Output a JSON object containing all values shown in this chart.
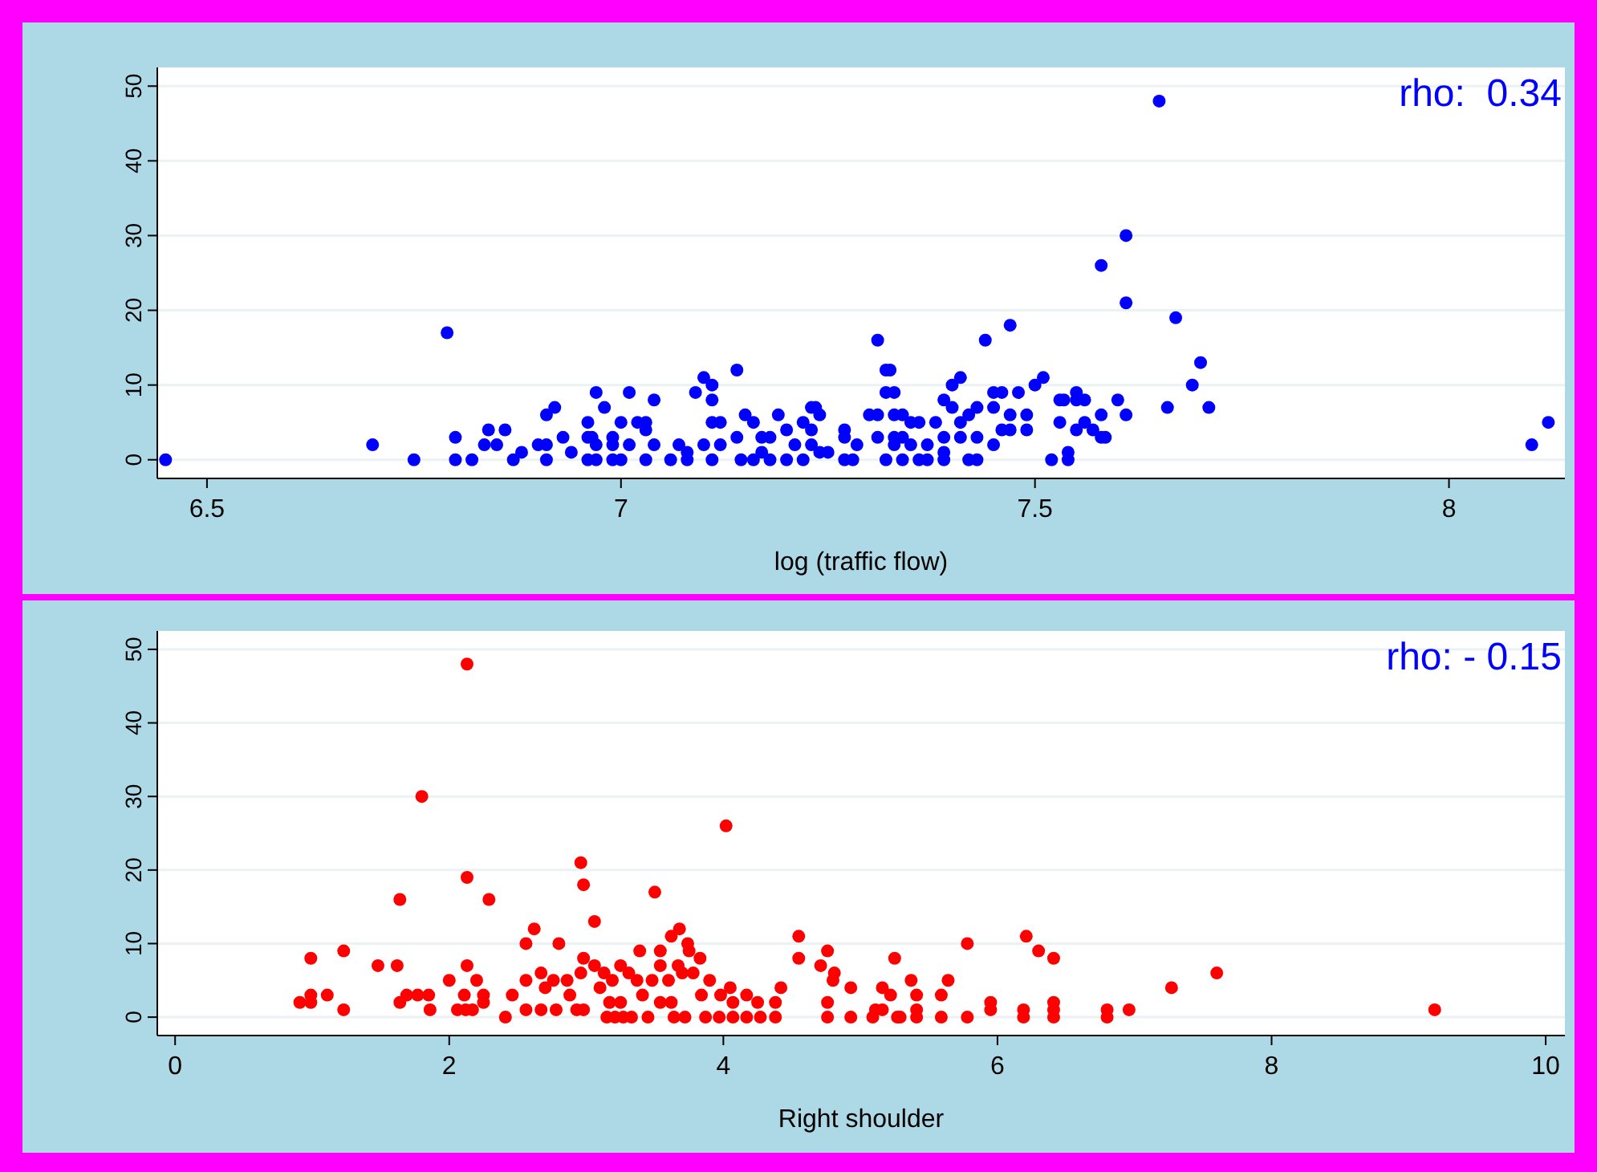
{
  "chart_data": [
    {
      "type": "scatter",
      "xlabel": "log (traffic flow)",
      "annotations": [
        "rho:  0.34"
      ],
      "xlim": [
        6.44,
        8.14
      ],
      "ylim": [
        -2.5,
        52.5
      ],
      "xticks": [
        6.5,
        7,
        7.5,
        8
      ],
      "yticks": [
        0,
        10,
        20,
        30,
        40,
        50
      ],
      "grid": "y",
      "marker": "circle",
      "series": [
        {
          "color": "#0000ff",
          "x": [
            6.45,
            6.7,
            6.75,
            6.79,
            6.8,
            6.8,
            6.82,
            6.835,
            6.85,
            6.84,
            6.86,
            6.87,
            6.88,
            6.9,
            6.91,
            6.91,
            6.91,
            6.92,
            6.93,
            6.94,
            6.96,
            6.96,
            6.965,
            6.97,
            6.96,
            6.97,
            6.97,
            6.99,
            6.98,
            6.99,
            7.0,
            6.99,
            7.0,
            7.01,
            7.01,
            7.02,
            7.03,
            7.03,
            7.04,
            7.04,
            7.03,
            7.06,
            7.08,
            7.07,
            7.08,
            7.09,
            7.1,
            7.11,
            7.11,
            7.11,
            7.12,
            7.1,
            7.12,
            7.11,
            7.14,
            7.15,
            7.14,
            7.145,
            7.16,
            7.17,
            7.18,
            7.17,
            7.16,
            7.18,
            7.19,
            7.2,
            7.22,
            7.23,
            7.235,
            7.24,
            7.23,
            7.21,
            7.23,
            7.24,
            7.2,
            7.22,
            7.25,
            7.27,
            7.27,
            7.27,
            7.28,
            7.285,
            7.31,
            7.32,
            7.325,
            7.32,
            7.33,
            7.3,
            7.31,
            7.33,
            7.34,
            7.31,
            7.33,
            7.34,
            7.35,
            7.36,
            7.38,
            7.33,
            7.35,
            7.37,
            7.32,
            7.34,
            7.36,
            7.37,
            7.39,
            7.4,
            7.41,
            7.4,
            7.41,
            7.42,
            7.39,
            7.41,
            7.39,
            7.39,
            7.42,
            7.43,
            7.43,
            7.43,
            7.44,
            7.45,
            7.45,
            7.46,
            7.45,
            7.46,
            7.47,
            7.47,
            7.47,
            7.48,
            7.49,
            7.49,
            7.5,
            7.51,
            7.52,
            7.53,
            7.535,
            7.53,
            7.54,
            7.54,
            7.55,
            7.55,
            7.55,
            7.56,
            7.56,
            7.57,
            7.58,
            7.585,
            7.58,
            7.58,
            7.6,
            7.61,
            7.61,
            7.61,
            7.65,
            7.66,
            7.67,
            7.69,
            7.7,
            7.71,
            8.1,
            8.12
          ],
          "values": [
            0,
            2,
            0,
            17,
            3,
            0,
            0,
            2,
            2,
            4,
            4,
            0,
            1,
            2,
            2,
            0,
            6,
            7,
            3,
            1,
            5,
            3,
            3,
            9,
            0,
            0,
            2,
            2,
            7,
            3,
            5,
            0,
            0,
            2,
            9,
            5,
            5,
            4,
            8,
            2,
            0,
            0,
            0,
            2,
            1,
            9,
            11,
            10,
            8,
            5,
            5,
            2,
            2,
            0,
            12,
            6,
            3,
            0,
            5,
            3,
            3,
            1,
            0,
            0,
            6,
            4,
            5,
            7,
            7,
            6,
            4,
            2,
            2,
            1,
            0,
            0,
            1,
            4,
            3,
            0,
            0,
            2,
            16,
            12,
            12,
            9,
            9,
            6,
            6,
            6,
            6,
            3,
            3,
            3,
            5,
            5,
            5,
            2,
            2,
            2,
            0,
            0,
            0,
            0,
            8,
            10,
            11,
            7,
            5,
            6,
            3,
            3,
            1,
            0,
            0,
            0,
            7,
            3,
            16,
            7,
            9,
            9,
            2,
            4,
            4,
            6,
            18,
            9,
            6,
            4,
            10,
            11,
            0,
            8,
            8,
            5,
            1,
            0,
            9,
            8,
            4,
            5,
            8,
            4,
            3,
            3,
            6,
            26,
            8,
            30,
            6,
            21,
            48,
            7,
            19,
            10,
            13,
            7,
            2,
            5
          ]
        }
      ]
    },
    {
      "type": "scatter",
      "xlabel": "Right shoulder",
      "annotations": [
        "rho: - 0.15"
      ],
      "xlim": [
        -0.13,
        10.14
      ],
      "ylim": [
        -2.5,
        52.5
      ],
      "xticks": [
        0,
        2,
        4,
        6,
        8,
        10
      ],
      "yticks": [
        0,
        10,
        20,
        30,
        40,
        50
      ],
      "grid": "y",
      "marker": "circle",
      "series": [
        {
          "color": "#ff0000",
          "x": [
            0.91,
            0.99,
            0.99,
            0.99,
            1.11,
            1.23,
            1.23,
            1.48,
            1.62,
            1.64,
            1.64,
            1.69,
            1.77,
            1.8,
            1.85,
            1.86,
            2.0,
            2.06,
            2.12,
            2.17,
            2.11,
            2.13,
            2.13,
            2.13,
            2.2,
            2.25,
            2.25,
            2.29,
            2.41,
            2.46,
            2.56,
            2.56,
            2.56,
            2.67,
            2.62,
            2.67,
            2.7,
            2.76,
            2.78,
            2.8,
            2.86,
            2.88,
            2.93,
            2.98,
            2.96,
            2.98,
            2.98,
            2.96,
            3.06,
            3.06,
            3.1,
            3.13,
            3.15,
            3.21,
            3.27,
            3.33,
            3.17,
            3.25,
            3.19,
            3.25,
            3.31,
            3.37,
            3.39,
            3.41,
            3.45,
            3.5,
            3.48,
            3.54,
            3.62,
            3.68,
            3.54,
            3.67,
            3.6,
            3.7,
            3.54,
            3.62,
            3.64,
            3.72,
            3.74,
            3.75,
            3.78,
            3.83,
            3.84,
            3.87,
            3.9,
            3.98,
            4.05,
            3.97,
            4.07,
            4.17,
            4.27,
            4.38,
            4.02,
            4.07,
            4.17,
            4.25,
            4.38,
            4.42,
            4.55,
            4.55,
            4.71,
            4.81,
            4.76,
            4.8,
            4.76,
            4.76,
            4.93,
            4.93,
            5.25,
            5.16,
            5.22,
            5.11,
            5.16,
            5.09,
            5.27,
            5.29,
            5.37,
            5.41,
            5.41,
            5.41,
            5.59,
            5.59,
            5.64,
            5.78,
            5.78,
            5.95,
            5.95,
            6.19,
            6.19,
            6.21,
            6.3,
            6.41,
            6.41,
            6.41,
            6.41,
            6.8,
            6.8,
            6.96,
            7.27,
            7.6,
            9.19
          ],
          "values": [
            2,
            3,
            2,
            8,
            3,
            9,
            1,
            7,
            7,
            16,
            2,
            3,
            3,
            30,
            3,
            1,
            5,
            1,
            1,
            1,
            3,
            48,
            19,
            7,
            5,
            3,
            2,
            16,
            0,
            3,
            10,
            5,
            1,
            1,
            12,
            6,
            4,
            5,
            1,
            10,
            5,
            3,
            1,
            1,
            21,
            18,
            8,
            6,
            13,
            7,
            4,
            6,
            0,
            0,
            0,
            0,
            2,
            2,
            5,
            7,
            6,
            5,
            9,
            3,
            0,
            17,
            5,
            9,
            11,
            12,
            7,
            7,
            5,
            6,
            2,
            2,
            0,
            0,
            10,
            9,
            6,
            8,
            3,
            0,
            5,
            3,
            4,
            0,
            0,
            0,
            0,
            0,
            26,
            2,
            3,
            2,
            2,
            4,
            11,
            8,
            7,
            6,
            9,
            5,
            2,
            0,
            4,
            0,
            8,
            4,
            3,
            1,
            1,
            0,
            0,
            0,
            5,
            3,
            1,
            0,
            3,
            0,
            5,
            10,
            0,
            2,
            1,
            0,
            1,
            11,
            9,
            8,
            2,
            1,
            0,
            1,
            0,
            1,
            4,
            6,
            1
          ]
        }
      ]
    }
  ]
}
